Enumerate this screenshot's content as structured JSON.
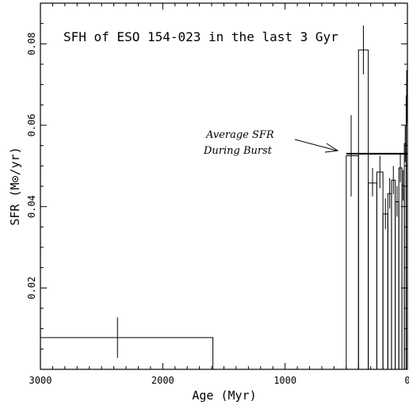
{
  "chart_data": {
    "type": "line",
    "title": "SFH of ESO 154-023 in the last 3 Gyr",
    "xlabel": "Age (Myr)",
    "ylabel": "SFR (M⊙/yr)",
    "xlim": [
      3000,
      0
    ],
    "ylim": [
      0,
      0.09
    ],
    "x_ticks": [
      {
        "value": 3000,
        "label": "3000"
      },
      {
        "value": 2000,
        "label": "2000"
      },
      {
        "value": 1000,
        "label": "1000"
      },
      {
        "value": 0,
        "label": "0"
      }
    ],
    "y_ticks": [
      {
        "value": 0.02,
        "label": "0.02"
      },
      {
        "value": 0.04,
        "label": "0.04"
      },
      {
        "value": 0.06,
        "label": "0.06"
      },
      {
        "value": 0.08,
        "label": "0.08"
      }
    ],
    "bins": [
      {
        "age_min": 1590,
        "age_max": 3000,
        "sfr": 0.0078,
        "err_age": 2370,
        "err_low": 0.0028,
        "err_high": 0.0128
      },
      {
        "age_min": 500,
        "age_max": 1590,
        "sfr": 0.0,
        "err_age": null,
        "err_low": null,
        "err_high": null
      },
      {
        "age_min": 400,
        "age_max": 500,
        "sfr": 0.0525,
        "err_age": 460,
        "err_low": 0.0425,
        "err_high": 0.0625
      },
      {
        "age_min": 320,
        "age_max": 400,
        "sfr": 0.0785,
        "err_age": 360,
        "err_low": 0.0725,
        "err_high": 0.0845
      },
      {
        "age_min": 250,
        "age_max": 320,
        "sfr": 0.0458,
        "err_age": 285,
        "err_low": 0.0425,
        "err_high": 0.0495
      },
      {
        "age_min": 200,
        "age_max": 250,
        "sfr": 0.0485,
        "err_age": 225,
        "err_low": 0.0445,
        "err_high": 0.0525
      },
      {
        "age_min": 160,
        "age_max": 200,
        "sfr": 0.0382,
        "err_age": 180,
        "err_low": 0.0345,
        "err_high": 0.042
      },
      {
        "age_min": 130,
        "age_max": 160,
        "sfr": 0.0432,
        "err_age": 145,
        "err_low": 0.0395,
        "err_high": 0.047
      },
      {
        "age_min": 100,
        "age_max": 130,
        "sfr": 0.0465,
        "err_age": 115,
        "err_low": 0.043,
        "err_high": 0.05
      },
      {
        "age_min": 70,
        "age_max": 100,
        "sfr": 0.0412,
        "err_age": 85,
        "err_low": 0.0375,
        "err_high": 0.045
      },
      {
        "age_min": 45,
        "age_max": 70,
        "sfr": 0.0495,
        "err_age": 58,
        "err_low": 0.046,
        "err_high": 0.053
      },
      {
        "age_min": 25,
        "age_max": 45,
        "sfr": 0.0452,
        "err_age": 35,
        "err_low": 0.0415,
        "err_high": 0.049
      },
      {
        "age_min": 10,
        "age_max": 25,
        "sfr": 0.0555,
        "err_age": 18,
        "err_low": 0.051,
        "err_high": 0.06
      },
      {
        "age_min": 0,
        "age_max": 10,
        "sfr": 0.0672,
        "err_age": 6,
        "err_low": 0.0605,
        "err_high": 0.0735
      }
    ],
    "average_sfr": {
      "value": 0.053,
      "age_min": 0,
      "age_max": 500
    },
    "annotation": {
      "line1": "Average SFR",
      "line2": "During Burst"
    }
  }
}
